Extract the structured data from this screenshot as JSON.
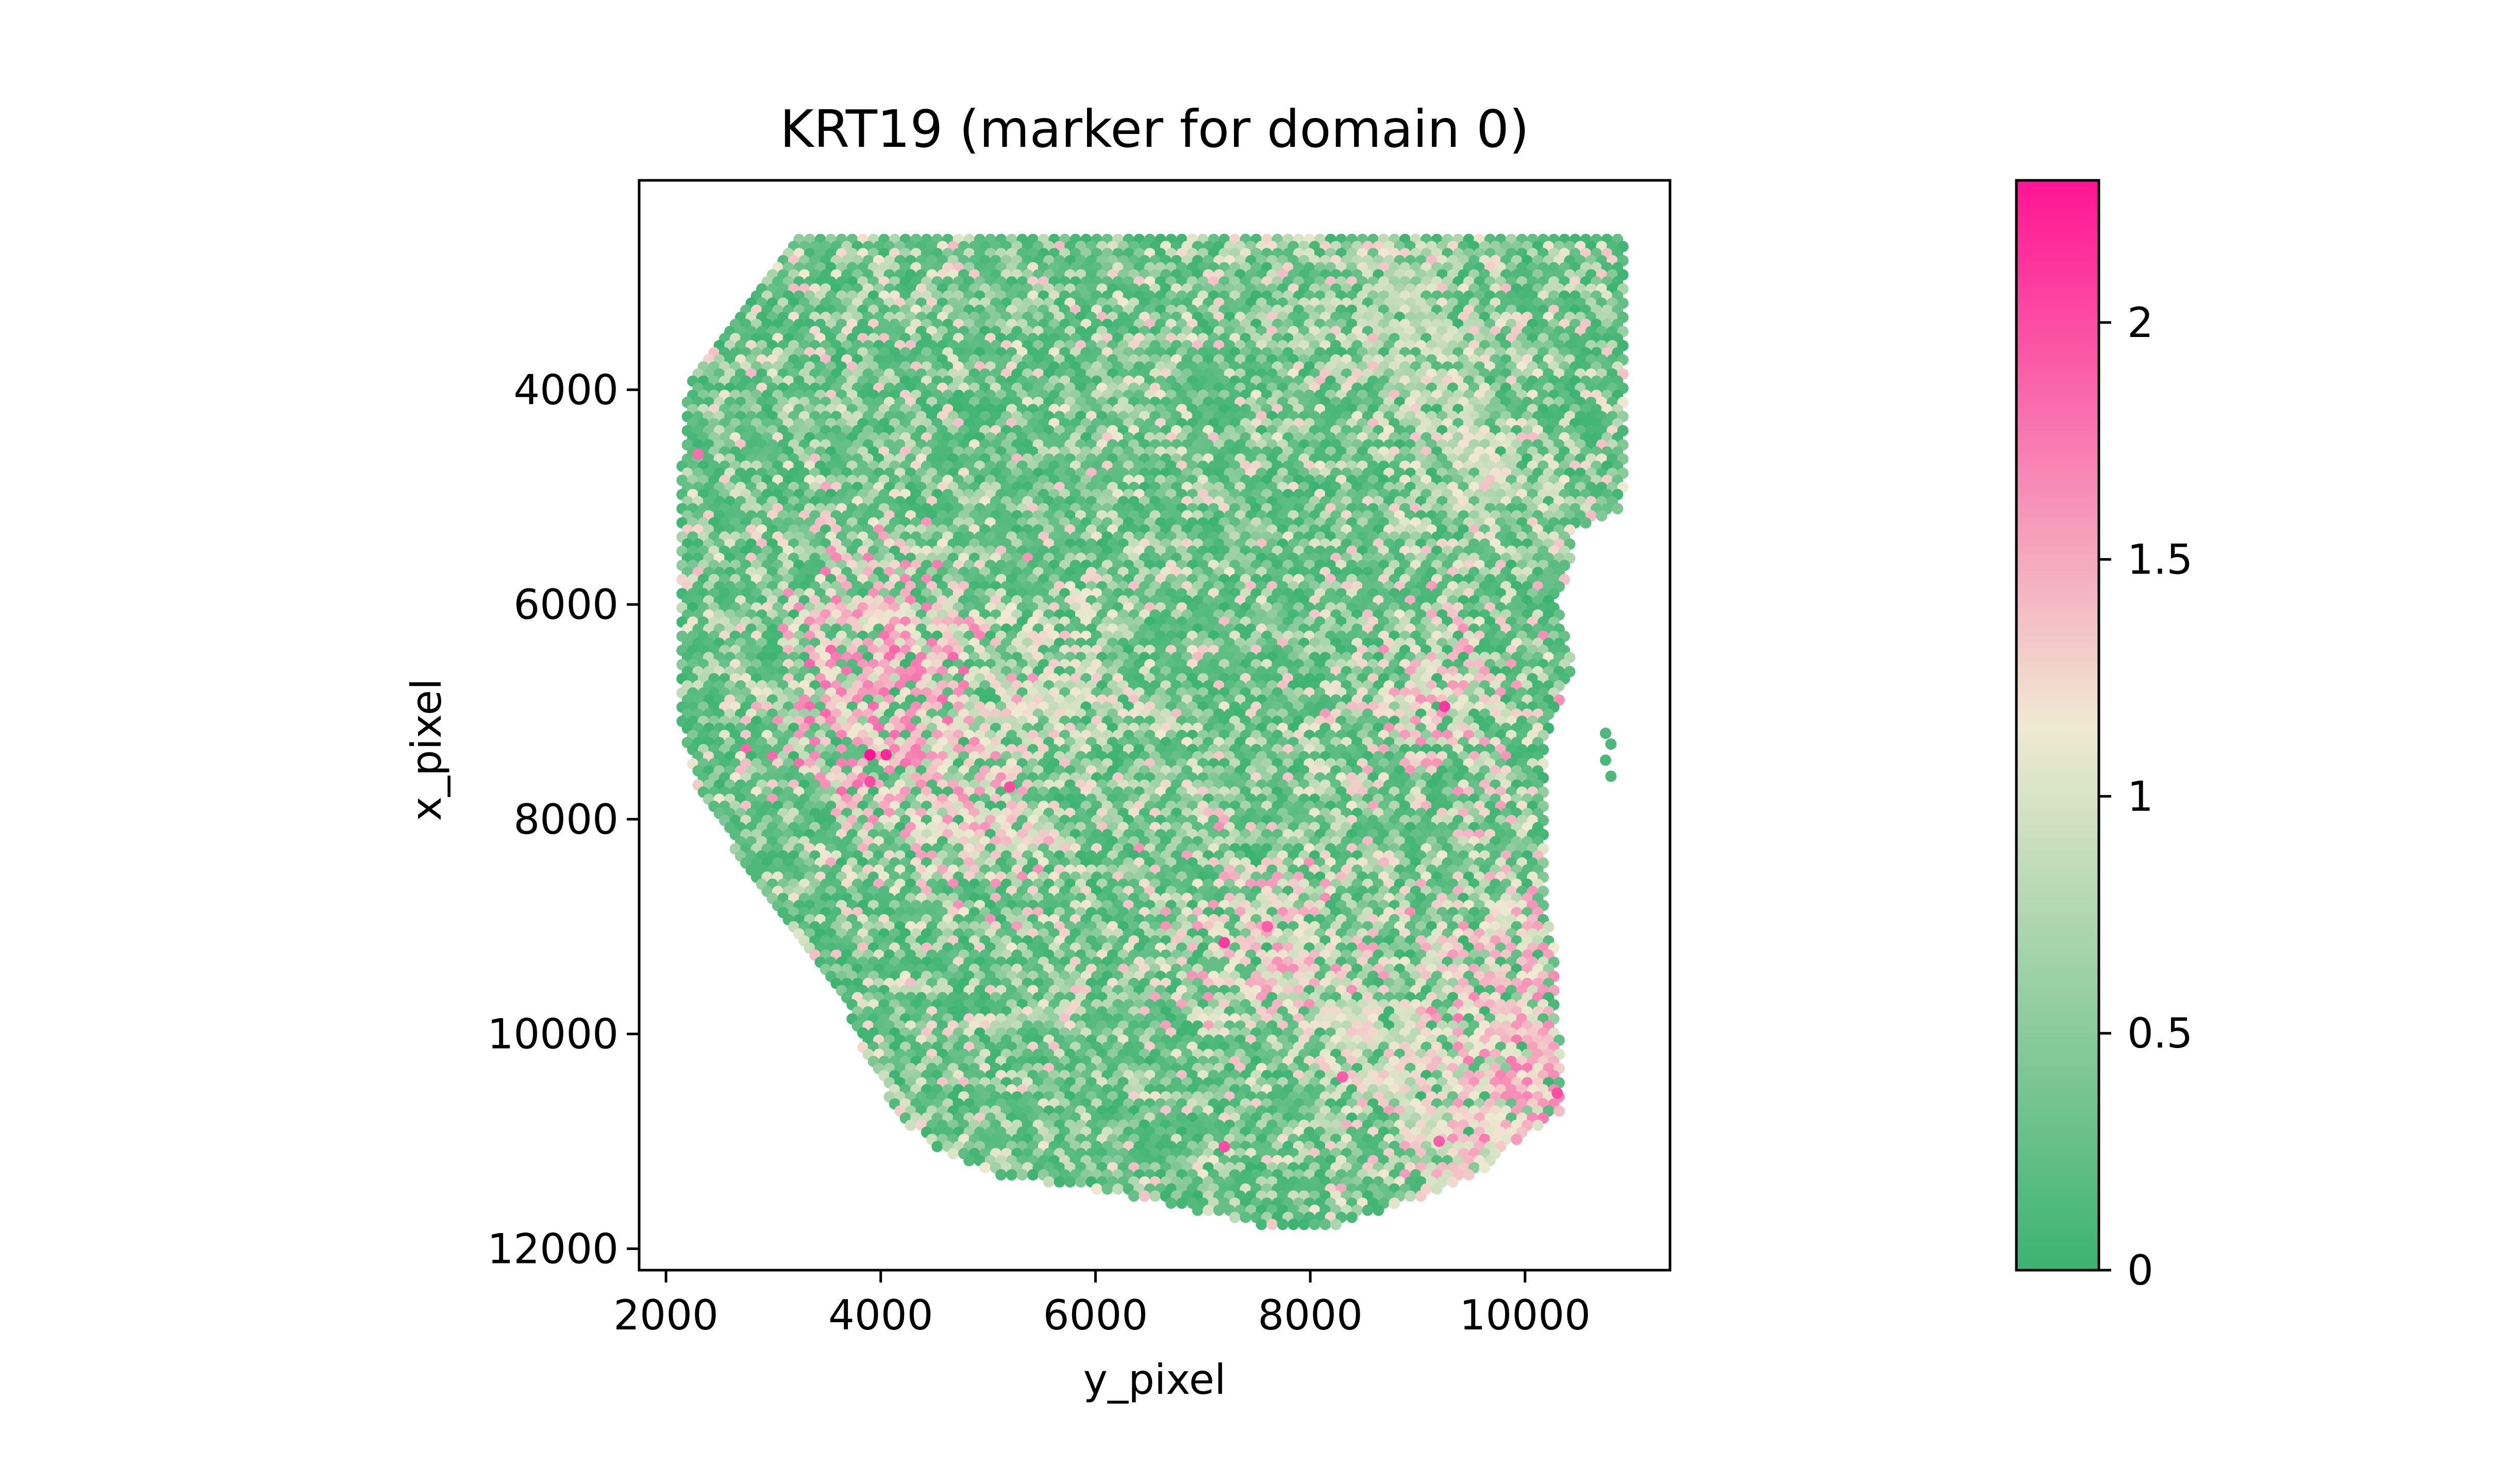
{
  "chart_data": {
    "type": "scatter",
    "title": "KRT19 (marker for domain 0)",
    "xlabel": "y_pixel",
    "ylabel": "x_pixel",
    "xlim": [
      1750,
      11350
    ],
    "ylim": [
      12200,
      2050
    ],
    "y_inverted": true,
    "x_ticks": [
      2000,
      4000,
      6000,
      8000,
      10000
    ],
    "y_ticks": [
      4000,
      6000,
      8000,
      10000,
      12000
    ],
    "x_tick_labels": [
      "2000",
      "4000",
      "6000",
      "8000",
      "10000"
    ],
    "y_tick_labels": [
      "4000",
      "6000",
      "8000",
      "10000",
      "12000"
    ],
    "grid": false,
    "spot_grid": {
      "description": "hexagonal spot array; row pitch ~66 in x_pixel, column pitch ~99 in y_pixel, alternate rows offset by half a column",
      "row_start": 2600,
      "row_end": 11800,
      "row_pitch": 66,
      "col_pitch": 99,
      "tissue_outline": [
        [
          2600,
          3150,
          10900
        ],
        [
          2800,
          3000,
          10950
        ],
        [
          3000,
          2850,
          10950
        ],
        [
          3300,
          2650,
          10950
        ],
        [
          3600,
          2400,
          10950
        ],
        [
          4000,
          2200,
          10950
        ],
        [
          4600,
          2150,
          10950
        ],
        [
          5100,
          2150,
          10900
        ],
        [
          5300,
          2150,
          10450
        ],
        [
          5600,
          2150,
          10450
        ],
        [
          6000,
          2150,
          10300
        ],
        [
          6600,
          2150,
          10450
        ],
        [
          7200,
          2150,
          10200
        ],
        [
          7700,
          2300,
          10200
        ],
        [
          8300,
          2650,
          10200
        ],
        [
          8800,
          3000,
          10200
        ],
        [
          9300,
          3400,
          10300
        ],
        [
          9800,
          3700,
          10300
        ],
        [
          10300,
          3900,
          10350
        ],
        [
          10700,
          4150,
          10350
        ],
        [
          11000,
          4400,
          9900
        ],
        [
          11300,
          5000,
          9600
        ],
        [
          11500,
          6300,
          9100
        ],
        [
          11700,
          7200,
          8500
        ],
        [
          11800,
          7600,
          8200
        ]
      ],
      "outlier_spots": [
        [
          7200,
          10750
        ],
        [
          7300,
          10800
        ],
        [
          7450,
          10750
        ],
        [
          7600,
          10800
        ]
      ]
    },
    "expression_hotspots": [
      {
        "x": 4000,
        "y": 6300,
        "level": 1.6
      },
      {
        "x": 3900,
        "y": 7100,
        "level": 1.7
      },
      {
        "x": 4700,
        "y": 7900,
        "level": 1.5
      },
      {
        "x": 5600,
        "y": 6800,
        "level": 1.2
      },
      {
        "x": 7600,
        "y": 9100,
        "level": 1.5
      },
      {
        "x": 8700,
        "y": 10200,
        "level": 1.2
      },
      {
        "x": 9400,
        "y": 6800,
        "level": 1.5
      },
      {
        "x": 9900,
        "y": 9200,
        "level": 1.5
      },
      {
        "x": 9400,
        "y": 11000,
        "level": 1.4
      },
      {
        "x": 10100,
        "y": 10400,
        "level": 1.6
      },
      {
        "x": 9600,
        "y": 4700,
        "level": 1.1
      },
      {
        "x": 8800,
        "y": 3300,
        "level": 1.0
      }
    ],
    "hot_spots": [
      [
        3900,
        7400,
        2.3
      ],
      [
        4050,
        7400,
        2.2
      ],
      [
        3900,
        7650,
        2.0
      ],
      [
        5200,
        7700,
        2.0
      ],
      [
        7200,
        9150,
        2.1
      ],
      [
        7600,
        9000,
        1.9
      ],
      [
        7200,
        11050,
        2.0
      ],
      [
        9250,
        6950,
        2.1
      ],
      [
        10300,
        10550,
        2.0
      ],
      [
        9200,
        11000,
        1.9
      ],
      [
        2300,
        4600,
        1.8
      ],
      [
        8300,
        10400,
        1.9
      ]
    ],
    "colorbar": {
      "vmin": 0,
      "vmax": 2.3,
      "ticks": [
        0,
        0.5,
        1,
        1.5,
        2
      ],
      "tick_labels": [
        "0",
        "0.5",
        "1",
        "1.5",
        "2"
      ],
      "colors": [
        "#3cb371",
        "#f0ead2",
        "#ff1493"
      ],
      "color_stops": [
        0,
        0.5,
        1
      ]
    }
  }
}
